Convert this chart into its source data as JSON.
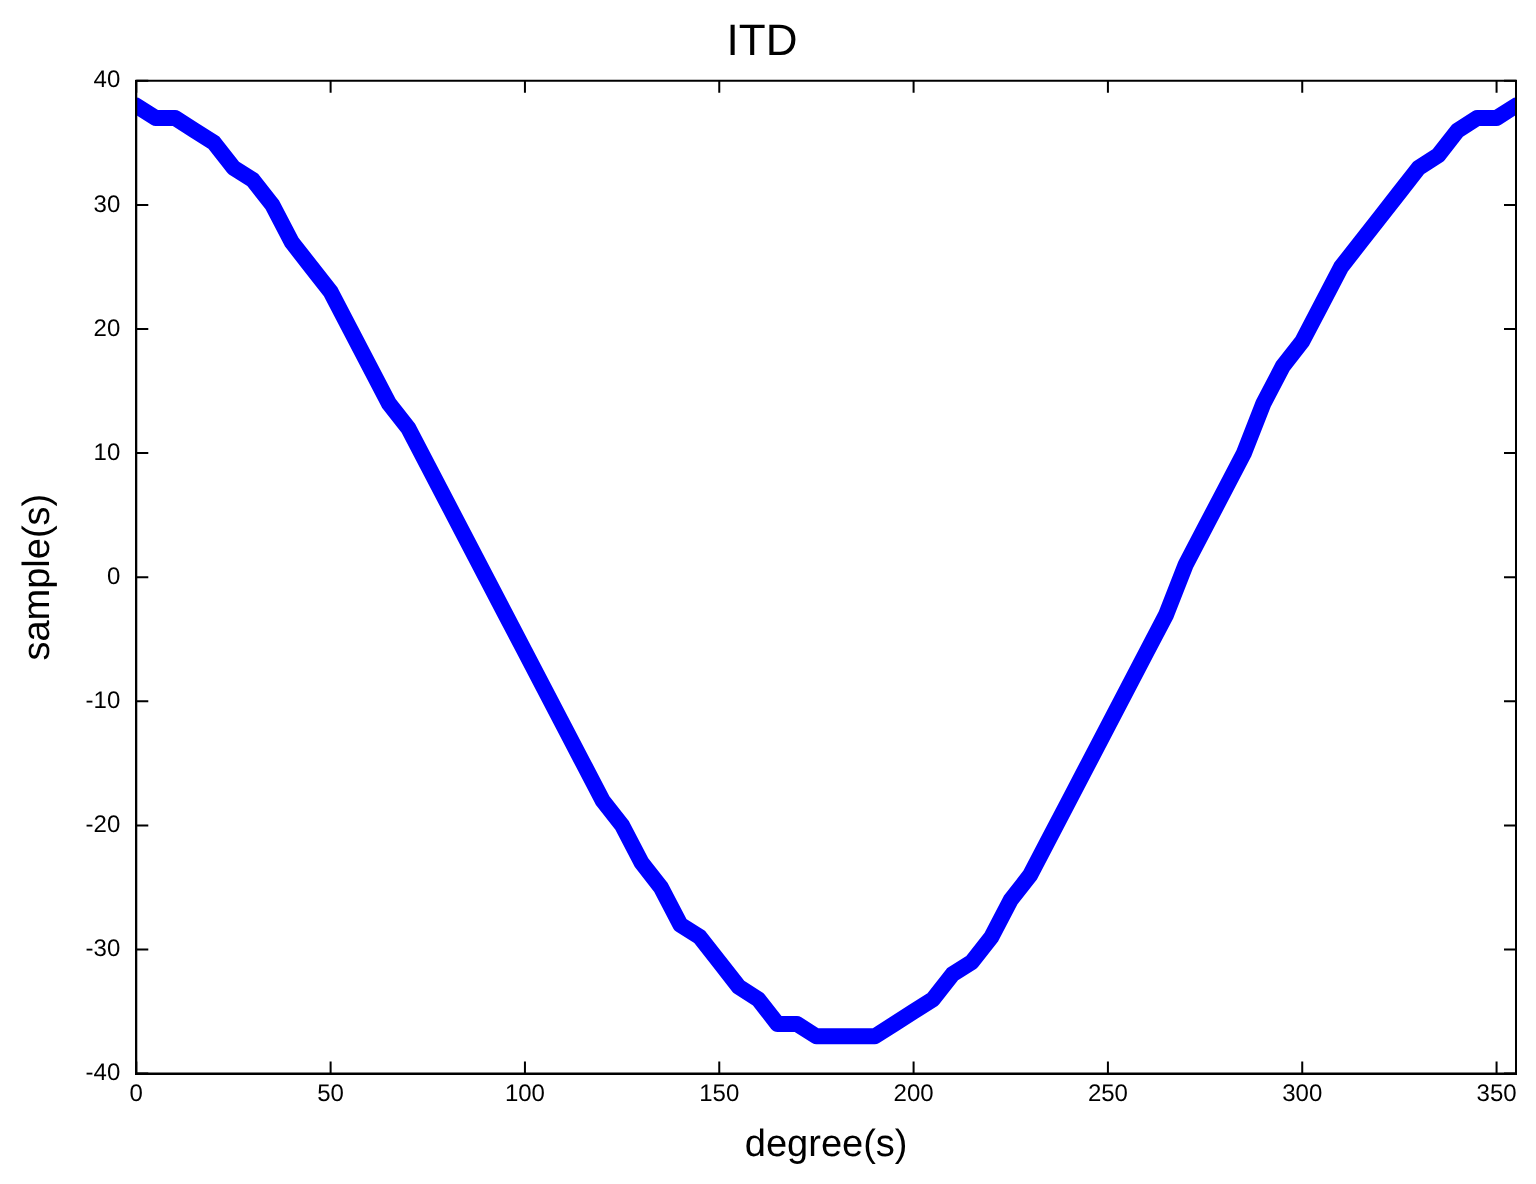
{
  "chart_data": {
    "type": "line",
    "title": "ITD",
    "xlabel": "degree(s)",
    "ylabel": "sample(s)",
    "x": [
      0,
      5,
      10,
      15,
      20,
      25,
      30,
      35,
      40,
      45,
      50,
      55,
      60,
      65,
      70,
      75,
      80,
      85,
      90,
      95,
      100,
      105,
      110,
      115,
      120,
      125,
      130,
      135,
      140,
      145,
      150,
      155,
      160,
      165,
      170,
      175,
      180,
      185,
      190,
      195,
      200,
      205,
      210,
      215,
      220,
      225,
      230,
      235,
      240,
      245,
      250,
      255,
      260,
      265,
      270,
      275,
      280,
      285,
      290,
      295,
      300,
      305,
      310,
      315,
      320,
      325,
      330,
      335,
      340,
      345,
      350,
      355
    ],
    "series": [
      {
        "color": "#0000ff",
        "values": [
          38,
          37,
          37,
          36,
          35,
          33,
          32,
          30,
          27,
          25,
          23,
          20,
          17,
          14,
          12,
          9,
          6,
          3,
          0,
          -3,
          -6,
          -9,
          -12,
          -15,
          -18,
          -20,
          -23,
          -25,
          -28,
          -29,
          -31,
          -33,
          -34,
          -36,
          -36,
          -37,
          -37,
          -37,
          -37,
          -36,
          -35,
          -34,
          -32,
          -31,
          -29,
          -26,
          -24,
          -21,
          -18,
          -15,
          -12,
          -9,
          -6,
          -3,
          1,
          4,
          7,
          10,
          14,
          17,
          19,
          22,
          25,
          27,
          29,
          31,
          33,
          34,
          36,
          37,
          37,
          38
        ]
      }
    ],
    "xlim": [
      0,
      355
    ],
    "xticks": [
      0,
      50,
      100,
      150,
      200,
      250,
      300,
      350
    ],
    "ylim": [
      -40,
      40
    ],
    "yticks": [
      -40,
      -30,
      -20,
      -10,
      0,
      10,
      20,
      30,
      40
    ],
    "grid": false,
    "legend": false,
    "marker": "none",
    "line_style": "solid"
  }
}
